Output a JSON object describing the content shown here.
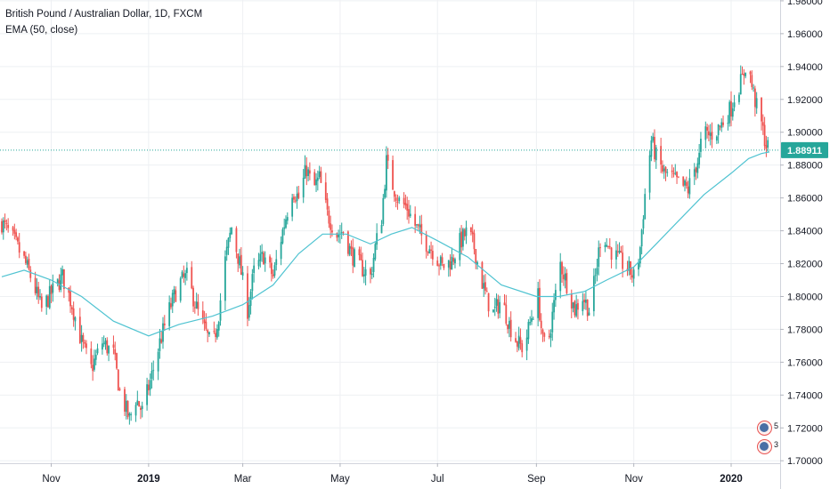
{
  "legend": {
    "symbol_line": "British Pound / Australian Dollar, 1D, FXCM",
    "indicator_line": "EMA (50, close)"
  },
  "colors": {
    "up": "#26a69a",
    "down": "#ef5350",
    "ema": "#4fc3d1",
    "price_line": "#26a69a",
    "price_label_bg": "#26a69a",
    "grid": "#eef0f3",
    "axis_text": "#131722"
  },
  "events": [
    {
      "name": "event-badge-1",
      "count": "5"
    },
    {
      "name": "event-badge-2",
      "count": "3"
    }
  ],
  "chart_data": {
    "type": "candlestick",
    "title": "British Pound / Australian Dollar, 1D, FXCM",
    "indicator": "EMA (50, close)",
    "x_tick_labels": [
      "Nov",
      "2019",
      "Mar",
      "May",
      "Jul",
      "Sep",
      "Nov",
      "2020"
    ],
    "x_tick_dates": [
      "2018-11-01",
      "2019-01-01",
      "2019-03-01",
      "2019-05-01",
      "2019-07-01",
      "2019-09-01",
      "2019-11-01",
      "2020-01-01"
    ],
    "x_range": [
      "2018-10-01",
      "2020-01-25"
    ],
    "y_tick_labels": [
      "1.70000",
      "1.72000",
      "1.74000",
      "1.76000",
      "1.78000",
      "1.80000",
      "1.82000",
      "1.84000",
      "1.86000",
      "1.88000",
      "1.90000",
      "1.92000",
      "1.94000",
      "1.96000",
      "1.98000"
    ],
    "y_range": [
      1.6985,
      1.9805
    ],
    "grid": true,
    "last_price": 1.88911,
    "last_price_label": "1.88911",
    "close_path": [
      [
        "2018-10-01",
        1.845
      ],
      [
        "2018-10-08",
        1.835
      ],
      [
        "2018-10-15",
        1.822
      ],
      [
        "2018-10-20",
        1.81
      ],
      [
        "2018-10-26",
        1.792
      ],
      [
        "2018-11-01",
        1.802
      ],
      [
        "2018-11-08",
        1.812
      ],
      [
        "2018-11-14",
        1.795
      ],
      [
        "2018-11-20",
        1.772
      ],
      [
        "2018-11-26",
        1.756
      ],
      [
        "2018-12-03",
        1.772
      ],
      [
        "2018-12-10",
        1.765
      ],
      [
        "2018-12-14",
        1.742
      ],
      [
        "2018-12-20",
        1.725
      ],
      [
        "2018-12-24",
        1.738
      ],
      [
        "2018-12-28",
        1.73
      ],
      [
        "2019-01-03",
        1.752
      ],
      [
        "2019-01-08",
        1.772
      ],
      [
        "2019-01-14",
        1.792
      ],
      [
        "2019-01-20",
        1.808
      ],
      [
        "2019-01-25",
        1.812
      ],
      [
        "2019-02-01",
        1.79
      ],
      [
        "2019-02-05",
        1.78
      ],
      [
        "2019-02-10",
        1.768
      ],
      [
        "2019-02-14",
        1.79
      ],
      [
        "2019-02-18",
        1.822
      ],
      [
        "2019-02-22",
        1.842
      ],
      [
        "2019-02-27",
        1.82
      ],
      [
        "2019-03-04",
        1.792
      ],
      [
        "2019-03-08",
        1.815
      ],
      [
        "2019-03-14",
        1.825
      ],
      [
        "2019-03-20",
        1.812
      ],
      [
        "2019-03-26",
        1.84
      ],
      [
        "2019-04-01",
        1.865
      ],
      [
        "2019-04-05",
        1.86
      ],
      [
        "2019-04-10",
        1.878
      ],
      [
        "2019-04-14",
        1.865
      ],
      [
        "2019-04-18",
        1.872
      ],
      [
        "2019-04-23",
        1.85
      ],
      [
        "2019-04-29",
        1.838
      ],
      [
        "2019-05-03",
        1.84
      ],
      [
        "2019-05-08",
        1.826
      ],
      [
        "2019-05-14",
        1.818
      ],
      [
        "2019-05-20",
        1.812
      ],
      [
        "2019-05-23",
        1.83
      ],
      [
        "2019-05-27",
        1.848
      ],
      [
        "2019-05-30",
        1.882
      ],
      [
        "2019-06-02",
        1.87
      ],
      [
        "2019-06-07",
        1.858
      ],
      [
        "2019-06-12",
        1.854
      ],
      [
        "2019-06-16",
        1.845
      ],
      [
        "2019-06-22",
        1.835
      ],
      [
        "2019-06-28",
        1.828
      ],
      [
        "2019-07-04",
        1.818
      ],
      [
        "2019-07-10",
        1.822
      ],
      [
        "2019-07-15",
        1.833
      ],
      [
        "2019-07-20",
        1.84
      ],
      [
        "2019-07-24",
        1.83
      ],
      [
        "2019-07-28",
        1.812
      ],
      [
        "2019-08-01",
        1.798
      ],
      [
        "2019-08-05",
        1.79
      ],
      [
        "2019-08-10",
        1.798
      ],
      [
        "2019-08-15",
        1.783
      ],
      [
        "2019-08-20",
        1.772
      ],
      [
        "2019-08-24",
        1.768
      ],
      [
        "2019-08-29",
        1.788
      ],
      [
        "2019-09-02",
        1.8
      ],
      [
        "2019-09-05",
        1.772
      ],
      [
        "2019-09-08",
        1.77
      ],
      [
        "2019-09-12",
        1.795
      ],
      [
        "2019-09-16",
        1.82
      ],
      [
        "2019-09-20",
        1.808
      ],
      [
        "2019-09-25",
        1.792
      ],
      [
        "2019-09-30",
        1.8
      ],
      [
        "2019-10-04",
        1.792
      ],
      [
        "2019-10-08",
        1.812
      ],
      [
        "2019-10-12",
        1.842
      ],
      [
        "2019-10-15",
        1.832
      ],
      [
        "2019-10-20",
        1.825
      ],
      [
        "2019-10-25",
        1.82
      ],
      [
        "2019-10-30",
        1.815
      ],
      [
        "2019-11-02",
        1.81
      ],
      [
        "2019-11-05",
        1.83
      ],
      [
        "2019-11-08",
        1.862
      ],
      [
        "2019-11-12",
        1.895
      ],
      [
        "2019-11-15",
        1.885
      ],
      [
        "2019-11-20",
        1.875
      ],
      [
        "2019-11-25",
        1.872
      ],
      [
        "2019-11-30",
        1.868
      ],
      [
        "2019-12-05",
        1.865
      ],
      [
        "2019-12-08",
        1.875
      ],
      [
        "2019-12-12",
        1.885
      ],
      [
        "2019-12-14",
        1.9
      ],
      [
        "2019-12-18",
        1.898
      ],
      [
        "2019-12-22",
        1.9
      ],
      [
        "2019-12-26",
        1.905
      ],
      [
        "2020-01-01",
        1.915
      ],
      [
        "2020-01-04",
        1.925
      ],
      [
        "2020-01-08",
        1.932
      ],
      [
        "2020-01-11",
        1.945
      ],
      [
        "2020-01-14",
        1.928
      ],
      [
        "2020-01-17",
        1.915
      ],
      [
        "2020-01-20",
        1.905
      ],
      [
        "2020-01-23",
        1.892
      ],
      [
        "2020-01-25",
        1.889
      ]
    ],
    "ema_path": [
      [
        "2018-10-01",
        1.812
      ],
      [
        "2018-10-15",
        1.816
      ],
      [
        "2018-11-01",
        1.81
      ],
      [
        "2018-11-20",
        1.8
      ],
      [
        "2018-12-10",
        1.785
      ],
      [
        "2019-01-01",
        1.776
      ],
      [
        "2019-01-20",
        1.783
      ],
      [
        "2019-02-10",
        1.788
      ],
      [
        "2019-03-01",
        1.795
      ],
      [
        "2019-03-20",
        1.807
      ],
      [
        "2019-04-05",
        1.826
      ],
      [
        "2019-04-20",
        1.838
      ],
      [
        "2019-05-05",
        1.838
      ],
      [
        "2019-05-20",
        1.832
      ],
      [
        "2019-06-02",
        1.838
      ],
      [
        "2019-06-15",
        1.842
      ],
      [
        "2019-07-01",
        1.834
      ],
      [
        "2019-07-20",
        1.824
      ],
      [
        "2019-08-10",
        1.807
      ],
      [
        "2019-09-01",
        1.8
      ],
      [
        "2019-09-15",
        1.8
      ],
      [
        "2019-10-01",
        1.803
      ],
      [
        "2019-10-15",
        1.81
      ],
      [
        "2019-11-01",
        1.818
      ],
      [
        "2019-11-15",
        1.832
      ],
      [
        "2019-12-01",
        1.848
      ],
      [
        "2019-12-15",
        1.862
      ],
      [
        "2020-01-01",
        1.875
      ],
      [
        "2020-01-12",
        1.884
      ],
      [
        "2020-01-20",
        1.887
      ],
      [
        "2020-01-25",
        1.888
      ]
    ]
  }
}
